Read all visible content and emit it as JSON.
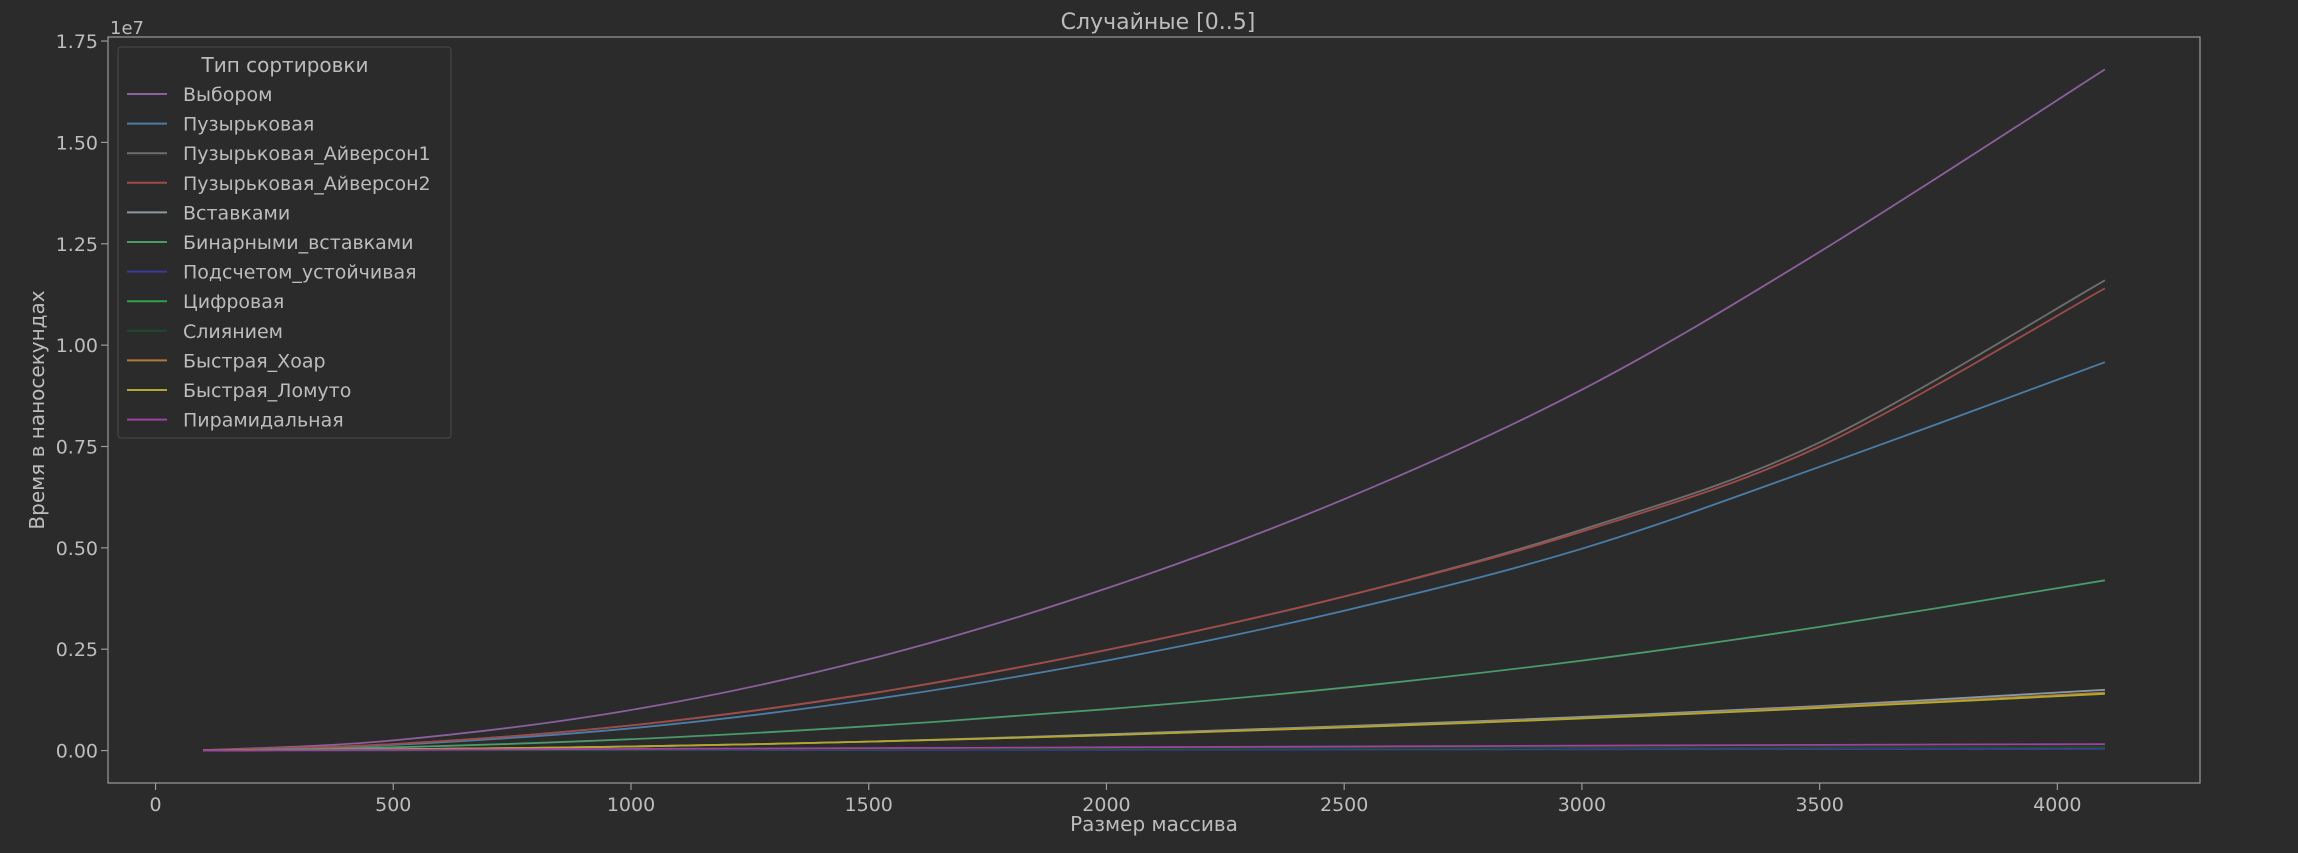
{
  "chart_data": {
    "type": "line",
    "title": "Случайные [0..5]",
    "xlabel": "Размер массива",
    "ylabel": "Время в наносекундах",
    "y_scale_label": "1e7",
    "xlim": [
      -100,
      4300
    ],
    "ylim": [
      -0.08,
      1.76
    ],
    "x_ticks": [
      0,
      500,
      1000,
      1500,
      2000,
      2500,
      3000,
      3500,
      4000
    ],
    "x_tick_labels": [
      "0",
      "500",
      "1000",
      "1500",
      "2000",
      "2500",
      "3000",
      "3500",
      "4000"
    ],
    "y_ticks": [
      0.0,
      0.25,
      0.5,
      0.75,
      1.0,
      1.25,
      1.5,
      1.75
    ],
    "y_tick_labels": [
      "0.00",
      "0.25",
      "0.50",
      "0.75",
      "1.00",
      "1.25",
      "1.50",
      "1.75"
    ],
    "grid": false,
    "legend": {
      "title": "Тип сортировки",
      "placement": "upper-left"
    },
    "x": [
      100,
      500,
      1000,
      1500,
      2000,
      2500,
      3000,
      3500,
      4100
    ],
    "series": [
      {
        "name": "Выбором",
        "color": "#8c5f9e",
        "values": [
          0.001,
          0.025,
          0.1,
          0.225,
          0.4,
          0.62,
          0.89,
          1.23,
          1.68
        ]
      },
      {
        "name": "Пузырьковая",
        "color": "#4a7ea8",
        "values": [
          0.0008,
          0.014,
          0.055,
          0.125,
          0.222,
          0.345,
          0.498,
          0.7,
          0.958
        ]
      },
      {
        "name": "Пузырьковая_Айверсон1",
        "color": "#6e6e6e",
        "values": [
          0.001,
          0.016,
          0.062,
          0.14,
          0.248,
          0.38,
          0.545,
          0.76,
          1.16
        ]
      },
      {
        "name": "Пузырьковая_Айверсон2",
        "color": "#a04a4a",
        "values": [
          0.001,
          0.016,
          0.062,
          0.14,
          0.248,
          0.38,
          0.54,
          0.75,
          1.14
        ]
      },
      {
        "name": "Вставками",
        "color": "#8a9aa5",
        "values": [
          0.0002,
          0.003,
          0.01,
          0.022,
          0.04,
          0.06,
          0.083,
          0.11,
          0.15
        ]
      },
      {
        "name": "Бинарными_вставками",
        "color": "#4a9a6a",
        "values": [
          0.0005,
          0.008,
          0.028,
          0.06,
          0.102,
          0.155,
          0.222,
          0.305,
          0.42
        ]
      },
      {
        "name": "Подсчетом_устойчивая",
        "color": "#3a3aa0",
        "values": [
          0.0,
          0.0005,
          0.001,
          0.0015,
          0.002,
          0.0025,
          0.003,
          0.0035,
          0.004
        ]
      },
      {
        "name": "Цифровая",
        "color": "#2ea04a",
        "values": [
          0.0,
          0.001,
          0.002,
          0.003,
          0.004,
          0.005,
          0.006,
          0.007,
          0.008
        ]
      },
      {
        "name": "Слиянием",
        "color": "#1e4a2e",
        "values": [
          0.0,
          0.001,
          0.002,
          0.003,
          0.004,
          0.005,
          0.006,
          0.007,
          0.008
        ]
      },
      {
        "name": "Быстрая_Хоар",
        "color": "#b07a3a",
        "values": [
          0.0002,
          0.003,
          0.01,
          0.022,
          0.038,
          0.058,
          0.08,
          0.107,
          0.143
        ]
      },
      {
        "name": "Быстрая_Ломуто",
        "color": "#b0a830",
        "values": [
          0.0002,
          0.003,
          0.01,
          0.022,
          0.038,
          0.057,
          0.079,
          0.105,
          0.14
        ]
      },
      {
        "name": "Пирамидальная",
        "color": "#a040a0",
        "values": [
          0.0,
          0.002,
          0.004,
          0.006,
          0.008,
          0.01,
          0.012,
          0.014,
          0.016
        ]
      }
    ]
  }
}
